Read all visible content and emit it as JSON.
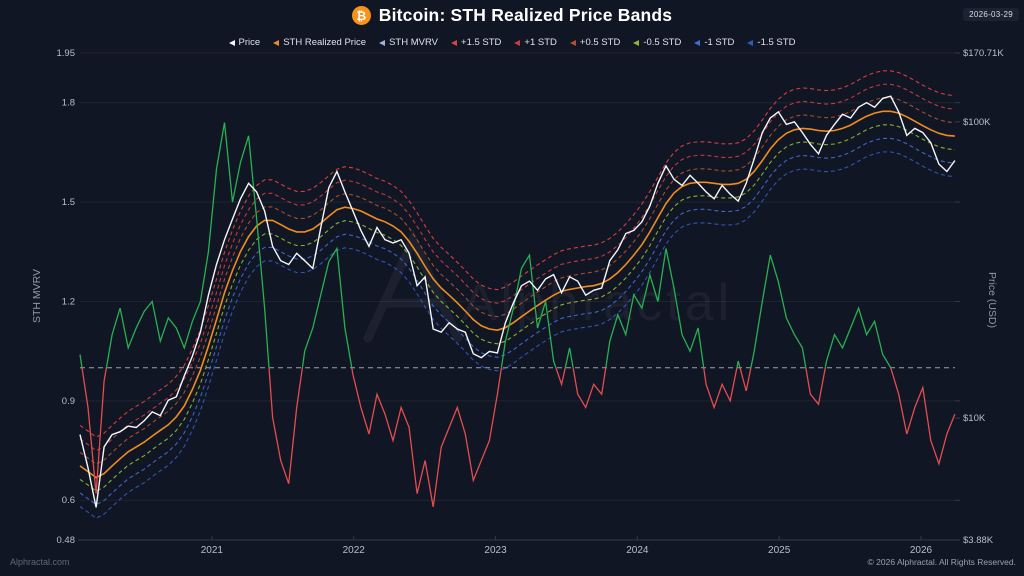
{
  "header": {
    "title": "Bitcoin: STH Realized Price Bands",
    "bitcoin_symbol": "₿",
    "date_badge": "2026-03-29"
  },
  "legend": [
    {
      "label": "Price",
      "color": "#f5f7fa"
    },
    {
      "label": "STH Realized Price",
      "color": "#f08c1e"
    },
    {
      "label": "STH MVRV",
      "color": "#9db2d6"
    },
    {
      "label": "+1.5 STD",
      "color": "#e04040"
    },
    {
      "label": "+1 STD",
      "color": "#cc3c3c"
    },
    {
      "label": "+0.5 STD",
      "color": "#b2502e"
    },
    {
      "label": "-0.5 STD",
      "color": "#8fb832"
    },
    {
      "label": "-1 STD",
      "color": "#3f6cd1"
    },
    {
      "label": "-1.5 STD",
      "color": "#3059bb"
    }
  ],
  "watermark": {
    "text": "Alphractal"
  },
  "footer": {
    "left": "Alphractal.com",
    "right": "© 2026 Alphractal. All Rights Reserved."
  },
  "chart_data": {
    "type": "line",
    "title": "Bitcoin: STH Realized Price Bands",
    "left_axis": {
      "label": "STH MVRV",
      "scale": "linear",
      "min": 0.48,
      "max": 1.95,
      "ticks": [
        1.95,
        1.8,
        1.5,
        1.2,
        0.9,
        0.6,
        0.48
      ]
    },
    "right_axis": {
      "label": "Price (USD)",
      "scale": "log",
      "top_value_k": 170.71,
      "bottom_value_k": 3.88,
      "ticks": [
        {
          "label": "$170.71K",
          "value_k": 170.71
        },
        {
          "label": "$100K",
          "value_k": 100
        },
        {
          "label": "$10K",
          "value_k": 10
        },
        {
          "label": "$3.88K",
          "value_k": 3.88
        }
      ]
    },
    "x_axis": {
      "start_year": 2020.07,
      "end_year": 2026.24,
      "tick_years": [
        2021,
        2022,
        2023,
        2024,
        2025,
        2026
      ]
    },
    "baseline": {
      "value": 1.0,
      "axis": "left",
      "color": "#9aa2b1"
    },
    "grid_color": "rgba(255,255,255,0.06)",
    "axis_line_color": "#323a49",
    "series_meta": {
      "price": {
        "name": "Price",
        "color": "#f5f7fa"
      },
      "sth_realized_price": {
        "name": "STH Realized Price",
        "color": "#f08c1e"
      },
      "sth_mvrv": {
        "name": "STH MVRV",
        "color_above": "#27b150",
        "color_below": "#e34d4d",
        "baseline": 1.0
      }
    },
    "band_model": {
      "basis": "sth_realized_price",
      "sigma_ln": 0.21,
      "bands": [
        {
          "mult": 1.5,
          "label": "+1.5 STD",
          "color": "#e04040"
        },
        {
          "mult": 1.0,
          "label": "+1 STD",
          "color": "#cc3c3c"
        },
        {
          "mult": 0.5,
          "label": "+0.5 STD",
          "color": "#b2502e"
        },
        {
          "mult": -0.5,
          "label": "-0.5 STD",
          "color": "#8fb832"
        },
        {
          "mult": -1.0,
          "label": "-1 STD",
          "color": "#3f6cd1"
        },
        {
          "mult": -1.5,
          "label": "-1.5 STD",
          "color": "#3059bb"
        }
      ]
    },
    "series": {
      "grid": {
        "start_year": 2020.07,
        "step_years": 0.0566,
        "count": 110
      },
      "price_usd_k": [
        8.8,
        6.8,
        5.0,
        8.0,
        8.8,
        9.0,
        9.4,
        9.3,
        9.8,
        10.5,
        10.2,
        11.5,
        11.8,
        13.9,
        16.2,
        19.5,
        26,
        33,
        40,
        47,
        55,
        62,
        58,
        50,
        38,
        34,
        33,
        36,
        34,
        32,
        44,
        60,
        68,
        58,
        50,
        43,
        38,
        44,
        40,
        39,
        40,
        36,
        28,
        30,
        20,
        19.5,
        21,
        20,
        19.5,
        16.5,
        16,
        16.8,
        16.6,
        21,
        24.5,
        28,
        29,
        27,
        29.5,
        30.5,
        26.5,
        30,
        29,
        26,
        27,
        27.5,
        34,
        37,
        42,
        43,
        46,
        52,
        62,
        71,
        64,
        61,
        66,
        62,
        58,
        55,
        61,
        57,
        54,
        62,
        75,
        92,
        103,
        108,
        98,
        100,
        92,
        84,
        78,
        90,
        98,
        106,
        103,
        112,
        116,
        112,
        120,
        122,
        108,
        90,
        95,
        92,
        85,
        72,
        68,
        74
      ],
      "sth_realized_price_usd_k": [
        6.9,
        6.6,
        6.3,
        6.5,
        6.9,
        7.3,
        7.7,
        8.0,
        8.3,
        8.7,
        9.1,
        9.5,
        10.1,
        11.0,
        12.5,
        14.5,
        17.5,
        21.5,
        26.5,
        31.5,
        36.5,
        41,
        44.5,
        46.5,
        46.5,
        45,
        43.5,
        42.5,
        42.5,
        43.5,
        45.5,
        48,
        50.5,
        51.5,
        51,
        50,
        48.5,
        47,
        46,
        44.5,
        42.5,
        39.5,
        36,
        32.5,
        29.5,
        27.5,
        26,
        24.5,
        23,
        21.5,
        20.5,
        20,
        19.8,
        20.2,
        21,
        22,
        23,
        24,
        25,
        26,
        26.8,
        27.2,
        27.5,
        27.8,
        28,
        28.5,
        29.5,
        31,
        33,
        35.5,
        38.5,
        42.5,
        47.5,
        53,
        57.5,
        60.5,
        62,
        62.5,
        62.5,
        62,
        61.5,
        61.5,
        62,
        64,
        68,
        74,
        81,
        87,
        91.5,
        94,
        95,
        94.5,
        93.5,
        93,
        93.5,
        95,
        97.5,
        101,
        104.5,
        107,
        108.5,
        108.5,
        107,
        104,
        100.5,
        97,
        94,
        91.5,
        90,
        89.5
      ],
      "sth_mvrv": [
        1.04,
        0.88,
        0.62,
        0.96,
        1.1,
        1.18,
        1.06,
        1.12,
        1.17,
        1.2,
        1.08,
        1.15,
        1.12,
        1.06,
        1.14,
        1.2,
        1.35,
        1.6,
        1.74,
        1.5,
        1.62,
        1.7,
        1.45,
        1.18,
        0.85,
        0.72,
        0.65,
        0.88,
        1.05,
        1.12,
        1.22,
        1.32,
        1.36,
        1.12,
        0.98,
        0.88,
        0.8,
        0.92,
        0.86,
        0.78,
        0.88,
        0.82,
        0.62,
        0.72,
        0.58,
        0.76,
        0.82,
        0.88,
        0.8,
        0.66,
        0.72,
        0.78,
        0.92,
        1.08,
        1.18,
        1.3,
        1.34,
        1.12,
        1.2,
        1.02,
        0.95,
        1.06,
        0.92,
        0.88,
        0.95,
        0.92,
        1.08,
        1.16,
        1.1,
        1.22,
        1.18,
        1.28,
        1.2,
        1.36,
        1.24,
        1.1,
        1.05,
        1.12,
        0.95,
        0.88,
        0.95,
        0.9,
        1.02,
        0.93,
        1.05,
        1.2,
        1.34,
        1.26,
        1.15,
        1.1,
        1.06,
        0.92,
        0.89,
        1.02,
        1.1,
        1.06,
        1.12,
        1.18,
        1.1,
        1.14,
        1.04,
        1.0,
        0.92,
        0.8,
        0.88,
        0.94,
        0.78,
        0.71,
        0.8,
        0.86
      ]
    }
  }
}
